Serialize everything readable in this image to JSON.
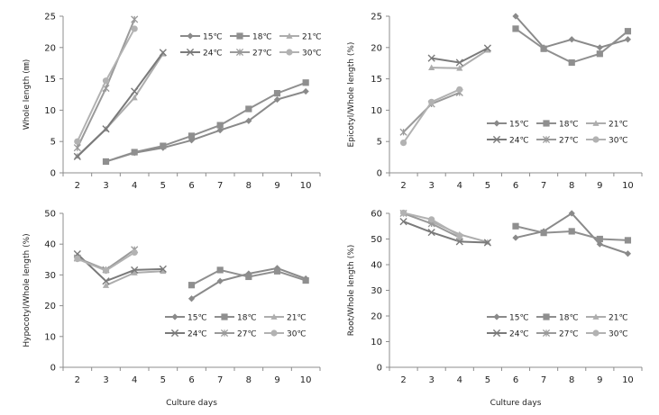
{
  "colors": {
    "15C": "#8a8a8a",
    "18C": "#8f8f8f",
    "21C": "#adadad",
    "24C": "#7a7a7a",
    "27C": "#9a9a9a",
    "30C": "#b2b2b2"
  },
  "chart_data": [
    {
      "type": "line",
      "id": "whole-length",
      "xlabel": "",
      "ylabel": "Whole length (㎜)",
      "ylim": [
        0,
        25
      ],
      "yticks": [
        0,
        5,
        10,
        15,
        20,
        25
      ],
      "xticks": [
        2,
        3,
        4,
        5,
        6,
        7,
        8,
        9,
        10
      ],
      "legend": "top-right",
      "series": [
        {
          "name": "15℃",
          "marker": "diamond",
          "colorKey": "15C",
          "segments": [
            [
              [
                3,
                1.8
              ],
              [
                4,
                3.2
              ],
              [
                5,
                4.0
              ],
              [
                6,
                5.2
              ],
              [
                7,
                6.8
              ],
              [
                8,
                8.3
              ],
              [
                9,
                11.7
              ],
              [
                10,
                13.0
              ]
            ]
          ]
        },
        {
          "name": "18℃",
          "marker": "square",
          "colorKey": "18C",
          "segments": [
            [
              [
                3,
                1.8
              ],
              [
                4,
                3.3
              ],
              [
                5,
                4.3
              ],
              [
                6,
                5.9
              ],
              [
                7,
                7.6
              ],
              [
                8,
                10.2
              ],
              [
                9,
                12.7
              ],
              [
                10,
                14.4
              ]
            ]
          ]
        },
        {
          "name": "21℃",
          "marker": "triangle",
          "colorKey": "21C",
          "segments": [
            [
              [
                2,
                2.7
              ],
              [
                3,
                7.0
              ],
              [
                4,
                12.0
              ],
              [
                5,
                19.0
              ]
            ]
          ]
        },
        {
          "name": "24℃",
          "marker": "x",
          "colorKey": "24C",
          "segments": [
            [
              [
                2,
                2.6
              ],
              [
                3,
                7.0
              ],
              [
                4,
                13.0
              ],
              [
                5,
                19.2
              ]
            ]
          ]
        },
        {
          "name": "27℃",
          "marker": "star",
          "colorKey": "27C",
          "segments": [
            [
              [
                2,
                4.0
              ],
              [
                3,
                13.5
              ],
              [
                4,
                24.5
              ]
            ]
          ]
        },
        {
          "name": "30℃",
          "marker": "circle",
          "colorKey": "30C",
          "segments": [
            [
              [
                2,
                5.0
              ],
              [
                3,
                14.7
              ],
              [
                4,
                23.0
              ]
            ]
          ]
        }
      ]
    },
    {
      "type": "line",
      "id": "epicotyl-ratio",
      "xlabel": "",
      "ylabel": "Epicotyl/Whole length (%)",
      "ylim": [
        0,
        25
      ],
      "yticks": [
        0,
        5,
        10,
        15,
        20,
        25
      ],
      "xticks": [
        2,
        3,
        4,
        5,
        6,
        7,
        8,
        9,
        10
      ],
      "legend": "center-right",
      "series": [
        {
          "name": "15℃",
          "marker": "diamond",
          "colorKey": "15C",
          "segments": [
            [
              [
                6,
                25.0
              ],
              [
                7,
                20.0
              ],
              [
                8,
                21.3
              ],
              [
                9,
                20.0
              ],
              [
                10,
                21.3
              ]
            ]
          ]
        },
        {
          "name": "18℃",
          "marker": "square",
          "colorKey": "18C",
          "segments": [
            [
              [
                6,
                23.0
              ],
              [
                7,
                19.8
              ],
              [
                8,
                17.6
              ],
              [
                9,
                19.0
              ],
              [
                10,
                22.6
              ]
            ]
          ]
        },
        {
          "name": "21℃",
          "marker": "triangle",
          "colorKey": "21C",
          "segments": [
            [
              [
                3,
                16.8
              ],
              [
                4,
                16.7
              ],
              [
                5,
                19.6
              ]
            ]
          ]
        },
        {
          "name": "24℃",
          "marker": "x",
          "colorKey": "24C",
          "segments": [
            [
              [
                3,
                18.3
              ],
              [
                4,
                17.6
              ],
              [
                5,
                19.9
              ]
            ]
          ]
        },
        {
          "name": "27℃",
          "marker": "star",
          "colorKey": "27C",
          "segments": [
            [
              [
                2,
                6.5
              ],
              [
                3,
                11.0
              ],
              [
                4,
                12.8
              ]
            ]
          ]
        },
        {
          "name": "30℃",
          "marker": "circle",
          "colorKey": "30C",
          "segments": [
            [
              [
                2,
                4.8
              ],
              [
                3,
                11.3
              ],
              [
                4,
                13.3
              ]
            ]
          ]
        }
      ]
    },
    {
      "type": "line",
      "id": "hypocotyl-ratio",
      "xlabel": "Culture days",
      "ylabel": "Hypocotyl/Whole length (%)",
      "ylim": [
        0,
        50
      ],
      "yticks": [
        0,
        10,
        20,
        30,
        40,
        50
      ],
      "xticks": [
        2,
        3,
        4,
        5,
        6,
        7,
        8,
        9,
        10
      ],
      "legend": "center-right",
      "series": [
        {
          "name": "15℃",
          "marker": "diamond",
          "colorKey": "15C",
          "segments": [
            [
              [
                6,
                22.3
              ],
              [
                7,
                28.0
              ],
              [
                8,
                30.4
              ],
              [
                9,
                32.2
              ],
              [
                10,
                28.8
              ]
            ]
          ]
        },
        {
          "name": "18℃",
          "marker": "square",
          "colorKey": "18C",
          "segments": [
            [
              [
                6,
                26.7
              ],
              [
                7,
                31.6
              ],
              [
                8,
                29.4
              ],
              [
                9,
                31.2
              ],
              [
                10,
                28.2
              ]
            ]
          ]
        },
        {
          "name": "21℃",
          "marker": "triangle",
          "colorKey": "21C",
          "segments": [
            [
              [
                3,
                26.6
              ],
              [
                4,
                30.7
              ],
              [
                5,
                31.2
              ]
            ]
          ]
        },
        {
          "name": "24℃",
          "marker": "x",
          "colorKey": "24C",
          "segments": [
            [
              [
                2,
                36.8
              ],
              [
                3,
                28.0
              ],
              [
                4,
                31.6
              ],
              [
                5,
                31.9
              ]
            ]
          ]
        },
        {
          "name": "27℃",
          "marker": "star",
          "colorKey": "27C",
          "segments": [
            [
              [
                2,
                35.5
              ],
              [
                3,
                31.7
              ],
              [
                4,
                38.2
              ]
            ]
          ]
        },
        {
          "name": "30℃",
          "marker": "circle",
          "colorKey": "30C",
          "segments": [
            [
              [
                2,
                35.2
              ],
              [
                3,
                31.4
              ],
              [
                4,
                37.3
              ]
            ]
          ]
        }
      ]
    },
    {
      "type": "line",
      "id": "root-ratio",
      "xlabel": "Culture days",
      "ylabel": "Root/Whole length (%)",
      "ylim": [
        0,
        60
      ],
      "yticks": [
        0,
        10,
        20,
        30,
        40,
        50,
        60
      ],
      "xticks": [
        2,
        3,
        4,
        5,
        6,
        7,
        8,
        9,
        10
      ],
      "legend": "center-right",
      "series": [
        {
          "name": "15℃",
          "marker": "diamond",
          "colorKey": "15C",
          "segments": [
            [
              [
                6,
                50.5
              ],
              [
                7,
                53.0
              ],
              [
                8,
                60.0
              ],
              [
                9,
                48.0
              ],
              [
                10,
                44.3
              ]
            ]
          ]
        },
        {
          "name": "18℃",
          "marker": "square",
          "colorKey": "18C",
          "segments": [
            [
              [
                6,
                55.0
              ],
              [
                7,
                52.4
              ],
              [
                8,
                53.0
              ],
              [
                9,
                50.0
              ],
              [
                10,
                49.5
              ]
            ]
          ]
        },
        {
          "name": "21℃",
          "marker": "triangle",
          "colorKey": "21C",
          "segments": [
            [
              [
                3,
                56.8
              ],
              [
                4,
                51.8
              ],
              [
                5,
                48.8
              ]
            ]
          ]
        },
        {
          "name": "24℃",
          "marker": "x",
          "colorKey": "24C",
          "segments": [
            [
              [
                2,
                56.8
              ],
              [
                3,
                52.6
              ],
              [
                4,
                49.0
              ],
              [
                5,
                48.6
              ]
            ]
          ]
        },
        {
          "name": "27℃",
          "marker": "star",
          "colorKey": "27C",
          "segments": [
            [
              [
                2,
                60.0
              ],
              [
                3,
                56.0
              ],
              [
                4,
                50.6
              ]
            ]
          ]
        },
        {
          "name": "30℃",
          "marker": "circle",
          "colorKey": "30C",
          "segments": [
            [
              [
                2,
                60.2
              ],
              [
                3,
                57.6
              ],
              [
                4,
                51.3
              ]
            ]
          ]
        }
      ]
    }
  ]
}
